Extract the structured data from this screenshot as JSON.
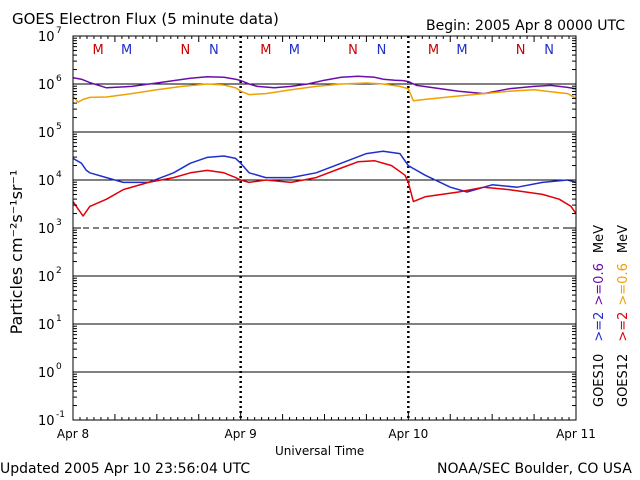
{
  "chart_data": {
    "type": "line",
    "title": "GOES Electron Flux (5 minute data)",
    "begin_label": "Begin: 2005 Apr 8 0000 UTC",
    "xlabel": "Universal Time",
    "ylabel": "Particles cm⁻²s⁻¹sr⁻¹",
    "y_scale": "log",
    "ylim_exponent": [
      -1,
      7
    ],
    "x_unit": "days since 2005 Apr 8 0000 UTC",
    "xlim": [
      0,
      3
    ],
    "x_ticks": [
      {
        "x": 0,
        "label": "Apr 8"
      },
      {
        "x": 1,
        "label": "Apr 9"
      },
      {
        "x": 2,
        "label": "Apr 10"
      },
      {
        "x": 3,
        "label": "Apr 11"
      }
    ],
    "y_ticks": [
      {
        "exp": 7,
        "label": "10",
        "sup": "7"
      },
      {
        "exp": 6,
        "label": "10",
        "sup": "6"
      },
      {
        "exp": 5,
        "label": "10",
        "sup": "5"
      },
      {
        "exp": 4,
        "label": "10",
        "sup": "4"
      },
      {
        "exp": 3,
        "label": "10",
        "sup": "3"
      },
      {
        "exp": 2,
        "label": "10",
        "sup": "2"
      },
      {
        "exp": 1,
        "label": "10",
        "sup": "1"
      },
      {
        "exp": 0,
        "label": "10",
        "sup": "0"
      },
      {
        "exp": -1,
        "label": "10",
        "sup": "-1"
      }
    ],
    "threshold_line_exp": 3,
    "markers": [
      {
        "x": 0.15,
        "label": "M",
        "color": "#cc0000"
      },
      {
        "x": 0.32,
        "label": "M",
        "color": "#1f2fcc"
      },
      {
        "x": 0.67,
        "label": "N",
        "color": "#cc0000"
      },
      {
        "x": 0.84,
        "label": "N",
        "color": "#1f2fcc"
      },
      {
        "x": 1.15,
        "label": "M",
        "color": "#cc0000"
      },
      {
        "x": 1.32,
        "label": "M",
        "color": "#1f2fcc"
      },
      {
        "x": 1.67,
        "label": "N",
        "color": "#cc0000"
      },
      {
        "x": 1.84,
        "label": "N",
        "color": "#1f2fcc"
      },
      {
        "x": 2.15,
        "label": "M",
        "color": "#cc0000"
      },
      {
        "x": 2.32,
        "label": "M",
        "color": "#1f2fcc"
      },
      {
        "x": 2.67,
        "label": "N",
        "color": "#cc0000"
      },
      {
        "x": 2.84,
        "label": "N",
        "color": "#1f2fcc"
      }
    ],
    "series": [
      {
        "name": "GOES10 >=0.6 MeV",
        "color": "#6a0dad",
        "x": [
          0.0,
          0.05,
          0.1,
          0.2,
          0.35,
          0.5,
          0.6,
          0.7,
          0.8,
          0.9,
          0.97,
          1.0,
          1.05,
          1.1,
          1.2,
          1.3,
          1.4,
          1.5,
          1.6,
          1.7,
          1.8,
          1.85,
          1.92,
          1.97,
          2.0,
          2.05,
          2.15,
          2.3,
          2.45,
          2.6,
          2.75,
          2.85,
          2.95,
          3.0
        ],
        "log_values": [
          6.13,
          6.1,
          6.03,
          5.92,
          5.95,
          6.02,
          6.07,
          6.12,
          6.15,
          6.14,
          6.1,
          6.07,
          6.0,
          5.95,
          5.92,
          5.95,
          6.0,
          6.08,
          6.14,
          6.16,
          6.14,
          6.1,
          6.08,
          6.07,
          6.05,
          5.97,
          5.92,
          5.85,
          5.8,
          5.9,
          5.95,
          5.97,
          5.93,
          5.9
        ]
      },
      {
        "name": "GOES12 >=0.6 MeV",
        "color": "#f0a000",
        "x": [
          0.0,
          0.03,
          0.06,
          0.1,
          0.2,
          0.35,
          0.5,
          0.65,
          0.8,
          0.9,
          0.97,
          1.0,
          1.05,
          1.15,
          1.3,
          1.45,
          1.6,
          1.75,
          1.85,
          1.95,
          2.0,
          2.03,
          2.1,
          2.3,
          2.45,
          2.6,
          2.75,
          2.85,
          2.95,
          3.0
        ],
        "log_values": [
          5.75,
          5.62,
          5.68,
          5.72,
          5.73,
          5.8,
          5.88,
          5.95,
          6.0,
          5.98,
          5.92,
          5.85,
          5.78,
          5.8,
          5.88,
          5.95,
          6.0,
          6.02,
          6.0,
          5.95,
          5.9,
          5.65,
          5.68,
          5.75,
          5.8,
          5.85,
          5.88,
          5.84,
          5.8,
          5.7
        ]
      },
      {
        "name": "GOES10 >=2 MeV",
        "color": "#1f2fcc",
        "x": [
          0.0,
          0.05,
          0.08,
          0.1,
          0.2,
          0.3,
          0.45,
          0.6,
          0.7,
          0.8,
          0.9,
          0.97,
          1.0,
          1.05,
          1.15,
          1.3,
          1.45,
          1.6,
          1.75,
          1.85,
          1.95,
          2.0,
          2.1,
          2.25,
          2.35,
          2.5,
          2.65,
          2.8,
          2.95,
          3.0
        ],
        "log_values": [
          4.45,
          4.35,
          4.2,
          4.15,
          4.05,
          3.95,
          3.95,
          4.15,
          4.35,
          4.47,
          4.5,
          4.45,
          4.35,
          4.15,
          4.05,
          4.05,
          4.15,
          4.35,
          4.55,
          4.6,
          4.55,
          4.3,
          4.1,
          3.85,
          3.75,
          3.9,
          3.85,
          3.95,
          4.0,
          3.95
        ]
      },
      {
        "name": "GOES12 >=2 MeV",
        "color": "#e0000a",
        "x": [
          0.0,
          0.03,
          0.06,
          0.1,
          0.2,
          0.3,
          0.45,
          0.6,
          0.7,
          0.8,
          0.9,
          0.97,
          1.0,
          1.05,
          1.15,
          1.3,
          1.45,
          1.6,
          1.7,
          1.8,
          1.9,
          1.98,
          2.0,
          2.03,
          2.1,
          2.3,
          2.45,
          2.6,
          2.7,
          2.8,
          2.9,
          2.97,
          3.0
        ],
        "log_values": [
          3.55,
          3.4,
          3.25,
          3.45,
          3.6,
          3.8,
          3.95,
          4.05,
          4.15,
          4.2,
          4.15,
          4.05,
          4.0,
          3.95,
          4.0,
          3.95,
          4.05,
          4.25,
          4.38,
          4.4,
          4.3,
          4.1,
          3.95,
          3.55,
          3.65,
          3.75,
          3.85,
          3.8,
          3.75,
          3.7,
          3.6,
          3.45,
          3.3
        ]
      }
    ],
    "legend": {
      "goes10": {
        "label": "GOES10",
        "lo": ">=2",
        "hi": ">=0.6",
        "unit": "MeV"
      },
      "goes12": {
        "label": "GOES12",
        "lo": ">=2",
        "hi": ">=0.6",
        "unit": "MeV"
      }
    }
  },
  "footer": {
    "updated": "Updated 2005 Apr 10 23:56:04 UTC",
    "source": "NOAA/SEC Boulder, CO USA"
  },
  "colors": {
    "goes10_hi": "#6a0dad",
    "goes12_hi": "#f0a000",
    "goes10_lo": "#1f2fcc",
    "goes12_lo": "#e0000a"
  }
}
